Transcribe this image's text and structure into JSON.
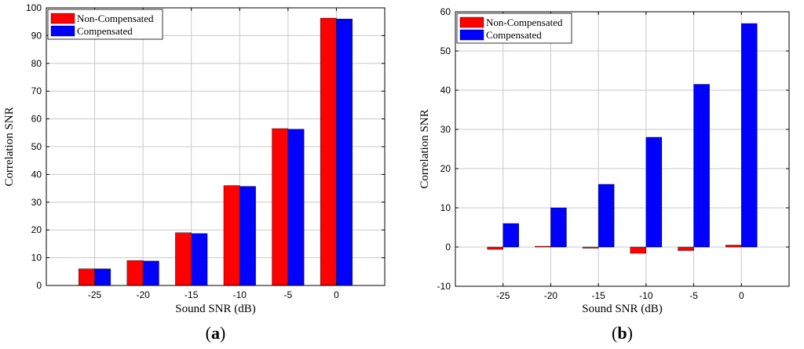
{
  "chart_data": [
    {
      "type": "bar",
      "panel_label": "a",
      "categories": [
        "-25",
        "-20",
        "-15",
        "-10",
        "-5",
        "0"
      ],
      "series": [
        {
          "name": "Non-Compensated",
          "color": "#ff0000",
          "values": [
            6,
            9,
            19,
            36,
            56.5,
            96.3
          ]
        },
        {
          "name": "Compensated",
          "color": "#0000ff",
          "values": [
            6,
            8.8,
            18.7,
            35.7,
            56.3,
            96
          ]
        }
      ],
      "xlabel": "Sound SNR (dB)",
      "ylabel": "Correlation SNR",
      "ylim": [
        0,
        100
      ],
      "yticks": [
        "0",
        "10",
        "20",
        "30",
        "40",
        "50",
        "60",
        "70",
        "80",
        "90",
        "100"
      ],
      "grid": true,
      "legend": "top-left"
    },
    {
      "type": "bar",
      "panel_label": "b",
      "categories": [
        "-25",
        "-20",
        "-15",
        "-10",
        "-5",
        "0"
      ],
      "series": [
        {
          "name": "Non-Compensated",
          "color": "#ff0000",
          "values": [
            -0.6,
            0.2,
            -0.3,
            -1.6,
            -0.9,
            0.5
          ]
        },
        {
          "name": "Compensated",
          "color": "#0000ff",
          "values": [
            6,
            10,
            16,
            28,
            41.5,
            57
          ]
        }
      ],
      "xlabel": "Sound SNR (dB)",
      "ylabel": "Correlation SNR",
      "ylim": [
        -10,
        60
      ],
      "yticks": [
        "-10",
        "0",
        "10",
        "20",
        "30",
        "40",
        "50",
        "60"
      ],
      "grid": true,
      "legend": "top-left"
    }
  ]
}
